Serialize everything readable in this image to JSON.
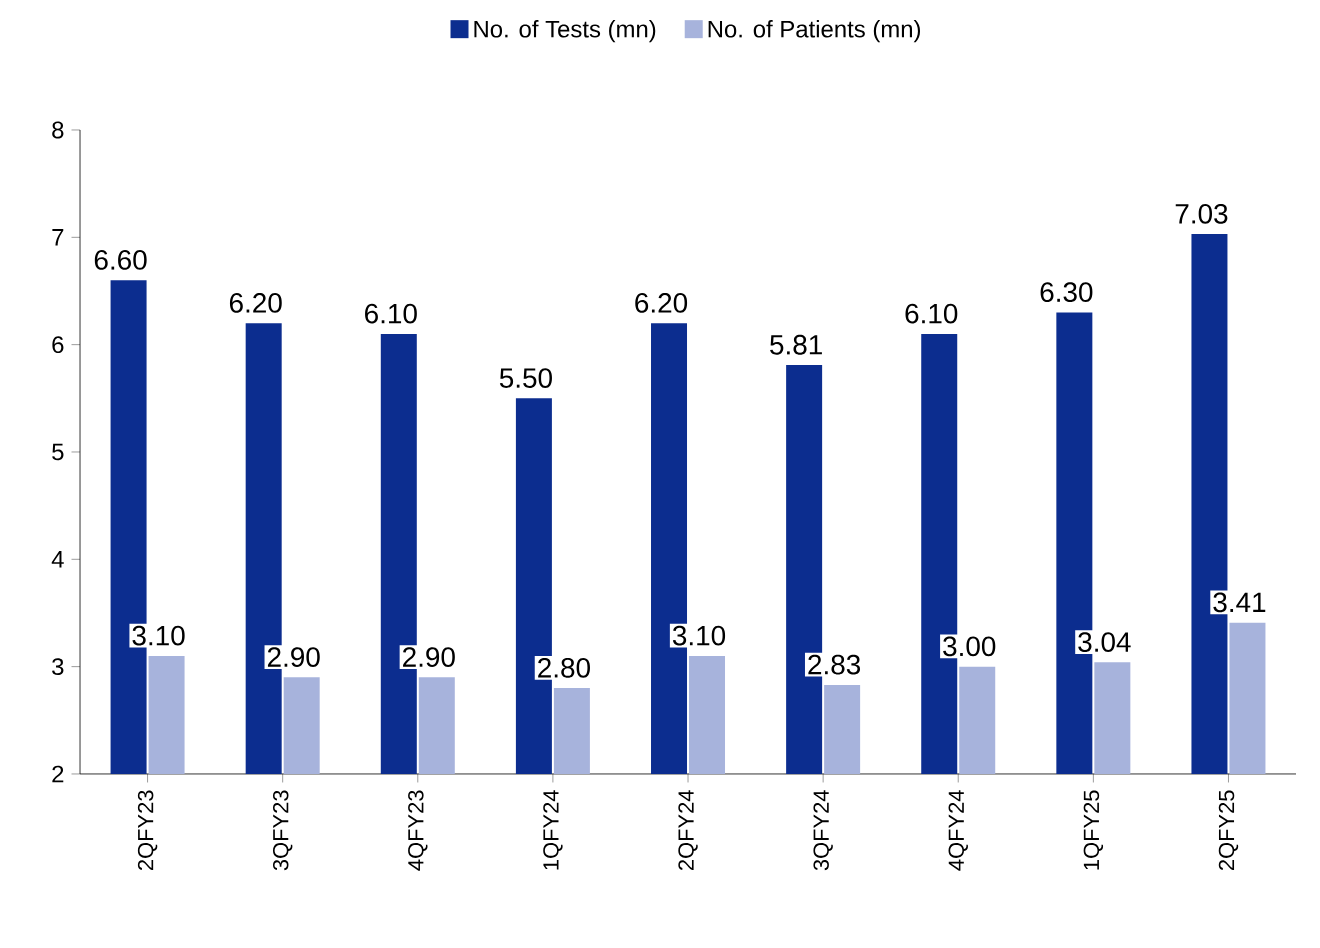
{
  "chart_data": {
    "type": "bar",
    "categories": [
      "2QFY23",
      "3QFY23",
      "4QFY23",
      "1QFY24",
      "2QFY24",
      "3QFY24",
      "4QFY24",
      "1QFY25",
      "2QFY25"
    ],
    "series": [
      {
        "name": "No. of Tests (mn)",
        "color": "#0c2d8f",
        "values": [
          6.6,
          6.2,
          6.1,
          5.5,
          6.2,
          5.81,
          6.1,
          6.3,
          7.03
        ],
        "value_labels": [
          "6.60",
          "6.20",
          "6.10",
          "5.50",
          "6.20",
          "5.81",
          "6.10",
          "6.30",
          "7.03"
        ]
      },
      {
        "name": "No. of Patients (mn)",
        "color": "#a7b3dc",
        "values": [
          3.1,
          2.9,
          2.9,
          2.8,
          3.1,
          2.83,
          3.0,
          3.04,
          3.41
        ],
        "value_labels": [
          "3.10",
          "2.90",
          "2.90",
          "2.80",
          "3.10",
          "2.83",
          "3.00",
          "3.04",
          "3.41"
        ]
      }
    ],
    "ylim": [
      2,
      8
    ],
    "yticks": [
      2,
      3,
      4,
      5,
      6,
      7,
      8
    ],
    "grid": false,
    "legend": "top"
  }
}
